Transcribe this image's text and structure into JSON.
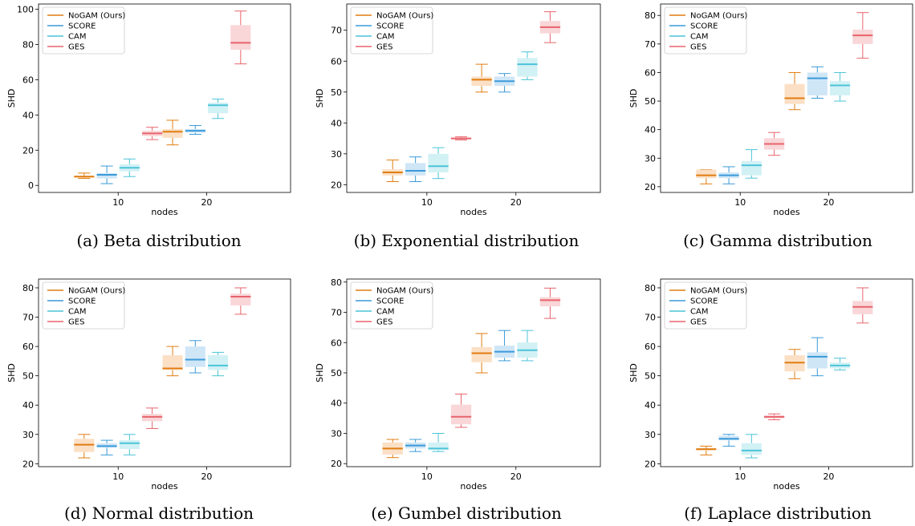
{
  "series_names": [
    "NoGAM (Ours)",
    "SCORE",
    "CAM",
    "GES"
  ],
  "series_colors": [
    "#e07d10",
    "#3a9ad9",
    "#4cc4d8",
    "#e8646c"
  ],
  "series_fills": [
    "#fbe0c6",
    "#cfe6f7",
    "#d2f1f5",
    "#f9d6d8"
  ],
  "chart_data": [
    {
      "type": "box",
      "caption": "(a) Beta distribution",
      "xlabel": "nodes",
      "ylabel": "SHD",
      "categories": [
        "10",
        "20"
      ],
      "ylim": [
        -4,
        103
      ],
      "yticks": [
        0,
        20,
        40,
        60,
        80,
        100
      ],
      "legend_position": "top-left",
      "series": [
        {
          "name": "NoGAM (Ours)",
          "boxes": [
            [
              4,
              4.5,
              5,
              5.5,
              7
            ],
            [
              23,
              27,
              30.5,
              32,
              37
            ]
          ]
        },
        {
          "name": "SCORE",
          "boxes": [
            [
              1,
              4,
              6,
              7,
              11
            ],
            [
              29,
              30,
              31,
              32,
              34
            ]
          ]
        },
        {
          "name": "CAM",
          "boxes": [
            [
              5,
              8,
              10,
              12,
              15
            ],
            [
              38,
              41,
              45.5,
              47,
              49
            ]
          ]
        },
        {
          "name": "GES",
          "boxes": [
            [
              26,
              28,
              29.5,
              31,
              33
            ],
            [
              69,
              77,
              81,
              91,
              99
            ]
          ]
        }
      ]
    },
    {
      "type": "box",
      "caption": "(b) Exponential distribution",
      "xlabel": "nodes",
      "ylabel": "SHD",
      "categories": [
        "10",
        "20"
      ],
      "ylim": [
        17.5,
        78.5
      ],
      "yticks": [
        20,
        30,
        40,
        50,
        60,
        70
      ],
      "legend_position": "top-left",
      "series": [
        {
          "name": "NoGAM (Ours)",
          "boxes": [
            [
              21,
              23,
              24,
              25,
              28
            ],
            [
              50,
              52,
              54,
              55,
              59
            ]
          ]
        },
        {
          "name": "SCORE",
          "boxes": [
            [
              21,
              23,
              24.5,
              27,
              29
            ],
            [
              50,
              52,
              53.5,
              55,
              56
            ]
          ]
        },
        {
          "name": "CAM",
          "boxes": [
            [
              22,
              24,
              26,
              30,
              32
            ],
            [
              54,
              55,
              59,
              61,
              63
            ]
          ]
        },
        {
          "name": "GES",
          "boxes": [
            [
              34.5,
              34.7,
              35,
              35.2,
              35.5
            ],
            [
              66,
              69,
              71,
              73,
              76
            ]
          ]
        }
      ]
    },
    {
      "type": "box",
      "caption": "(c) Gamma distribution",
      "xlabel": "nodes",
      "ylabel": "SHD",
      "categories": [
        "10",
        "20"
      ],
      "ylim": [
        18,
        84
      ],
      "yticks": [
        20,
        30,
        40,
        50,
        60,
        70,
        80
      ],
      "legend_position": "top-left",
      "series": [
        {
          "name": "NoGAM (Ours)",
          "boxes": [
            [
              21,
              23,
              24,
              26,
              26
            ],
            [
              47,
              49,
              51,
              56,
              60
            ]
          ]
        },
        {
          "name": "SCORE",
          "boxes": [
            [
              21,
              23,
              24,
              25,
              27
            ],
            [
              51,
              52,
              58,
              60,
              62
            ]
          ]
        },
        {
          "name": "CAM",
          "boxes": [
            [
              23,
              24,
              27.5,
              29,
              33
            ],
            [
              50,
              52,
              55.5,
              57,
              60
            ]
          ]
        },
        {
          "name": "GES",
          "boxes": [
            [
              31,
              33,
              35,
              37,
              39
            ],
            [
              65,
              70,
              73,
              75,
              81
            ]
          ]
        }
      ]
    },
    {
      "type": "box",
      "caption": "(d) Normal distribution",
      "xlabel": "nodes",
      "ylabel": "SHD",
      "categories": [
        "10",
        "20"
      ],
      "ylim": [
        19,
        83
      ],
      "yticks": [
        20,
        30,
        40,
        50,
        60,
        70,
        80
      ],
      "legend_position": "top-left",
      "series": [
        {
          "name": "NoGAM (Ours)",
          "boxes": [
            [
              22,
              24,
              26.5,
              28.5,
              30
            ],
            [
              50,
              52,
              52.5,
              57,
              60
            ]
          ]
        },
        {
          "name": "SCORE",
          "boxes": [
            [
              23,
              25.5,
              26,
              27,
              28
            ],
            [
              51,
              53,
              55.5,
              60,
              62
            ]
          ]
        },
        {
          "name": "CAM",
          "boxes": [
            [
              23,
              25,
              27,
              28,
              30
            ],
            [
              50,
              52,
              53.5,
              57,
              58
            ]
          ]
        },
        {
          "name": "GES",
          "boxes": [
            [
              32,
              34.5,
              36,
              37,
              39
            ],
            [
              71,
              74,
              77,
              78,
              80
            ]
          ]
        }
      ]
    },
    {
      "type": "box",
      "caption": "(e) Gumbel distribution",
      "xlabel": "nodes",
      "ylabel": "SHD",
      "categories": [
        "10",
        "20"
      ],
      "ylim": [
        19,
        81
      ],
      "yticks": [
        20,
        30,
        40,
        50,
        60,
        70,
        80
      ],
      "legend_position": "top-left",
      "series": [
        {
          "name": "NoGAM (Ours)",
          "boxes": [
            [
              22,
              23,
              25,
              27,
              28
            ],
            [
              50,
              53.5,
              56.5,
              58.5,
              63
            ]
          ]
        },
        {
          "name": "SCORE",
          "boxes": [
            [
              24,
              25,
              26,
              27,
              28
            ],
            [
              54,
              55,
              57,
              59,
              64
            ]
          ]
        },
        {
          "name": "CAM",
          "boxes": [
            [
              24,
              24.5,
              25,
              27,
              30
            ],
            [
              54,
              55,
              57.5,
              60,
              64
            ]
          ]
        },
        {
          "name": "GES",
          "boxes": [
            [
              32,
              33,
              35.5,
              39.5,
              43
            ],
            [
              68,
              72,
              74,
              75,
              78
            ]
          ]
        }
      ]
    },
    {
      "type": "box",
      "caption": "(f) Laplace distribution",
      "xlabel": "nodes",
      "ylabel": "SHD",
      "categories": [
        "10",
        "20"
      ],
      "ylim": [
        19,
        83
      ],
      "yticks": [
        20,
        30,
        40,
        50,
        60,
        70,
        80
      ],
      "legend_position": "top-left",
      "series": [
        {
          "name": "NoGAM (Ours)",
          "boxes": [
            [
              23,
              24.5,
              25,
              25,
              26
            ],
            [
              49,
              51.5,
              54.5,
              57,
              59
            ]
          ]
        },
        {
          "name": "SCORE",
          "boxes": [
            [
              26,
              28,
              28.5,
              29.5,
              30
            ],
            [
              50,
              52.5,
              56.5,
              58,
              63
            ]
          ]
        },
        {
          "name": "CAM",
          "boxes": [
            [
              22,
              23,
              24.5,
              27,
              30
            ],
            [
              52,
              52.5,
              53.5,
              54.5,
              56
            ]
          ]
        },
        {
          "name": "GES",
          "boxes": [
            [
              35,
              35.5,
              36,
              36.5,
              37
            ],
            [
              68,
              71,
              73.5,
              75.5,
              80
            ]
          ]
        }
      ]
    }
  ]
}
